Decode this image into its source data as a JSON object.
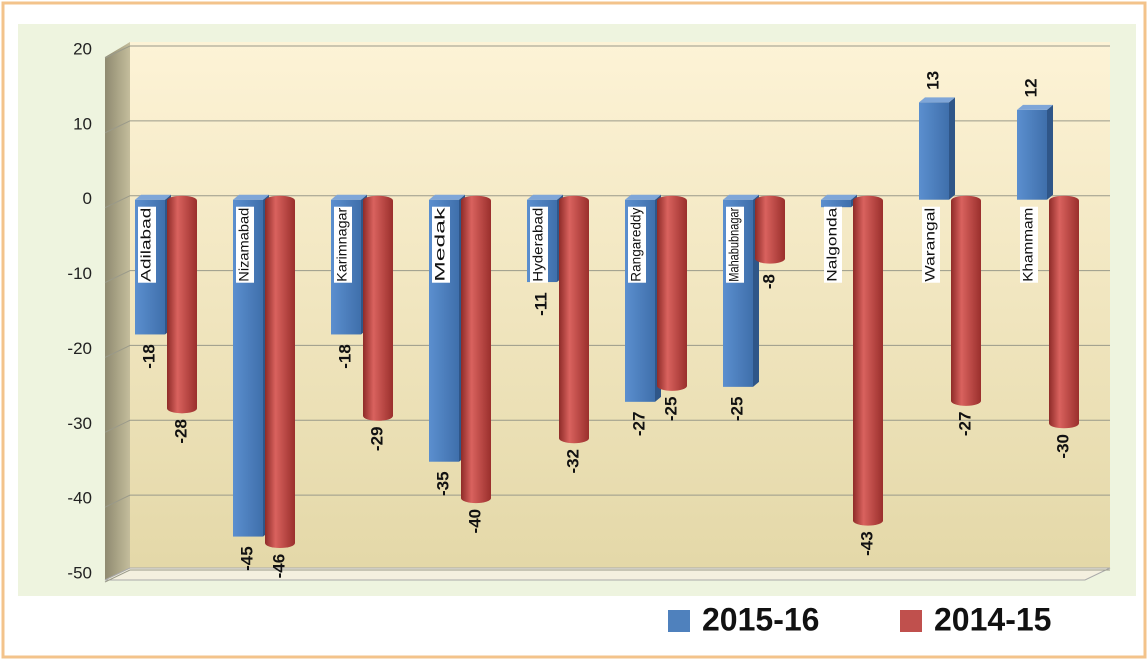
{
  "chart_data": {
    "type": "bar",
    "categories": [
      "Adilabad",
      "Nizamabad",
      "Karimnagar",
      "Medak",
      "Hyderabad",
      "Rangareddy",
      "Mahabubnagar",
      "Nalgonda",
      "Warangal",
      "Khammam"
    ],
    "series": [
      {
        "name": "2015-16",
        "color": "#4f81bd",
        "values": [
          -18,
          -45,
          -18,
          -35,
          -11,
          -27,
          -25,
          -1,
          13,
          12
        ]
      },
      {
        "name": "2014-15",
        "color": "#c0504d",
        "values": [
          -28,
          -46,
          -29,
          -40,
          -32,
          -25,
          -8,
          -43,
          -27,
          -30
        ]
      }
    ],
    "ylim": [
      -50,
      20
    ],
    "yticks": [
      -50,
      -40,
      -30,
      -20,
      -10,
      0,
      10,
      20
    ],
    "grid": true
  }
}
